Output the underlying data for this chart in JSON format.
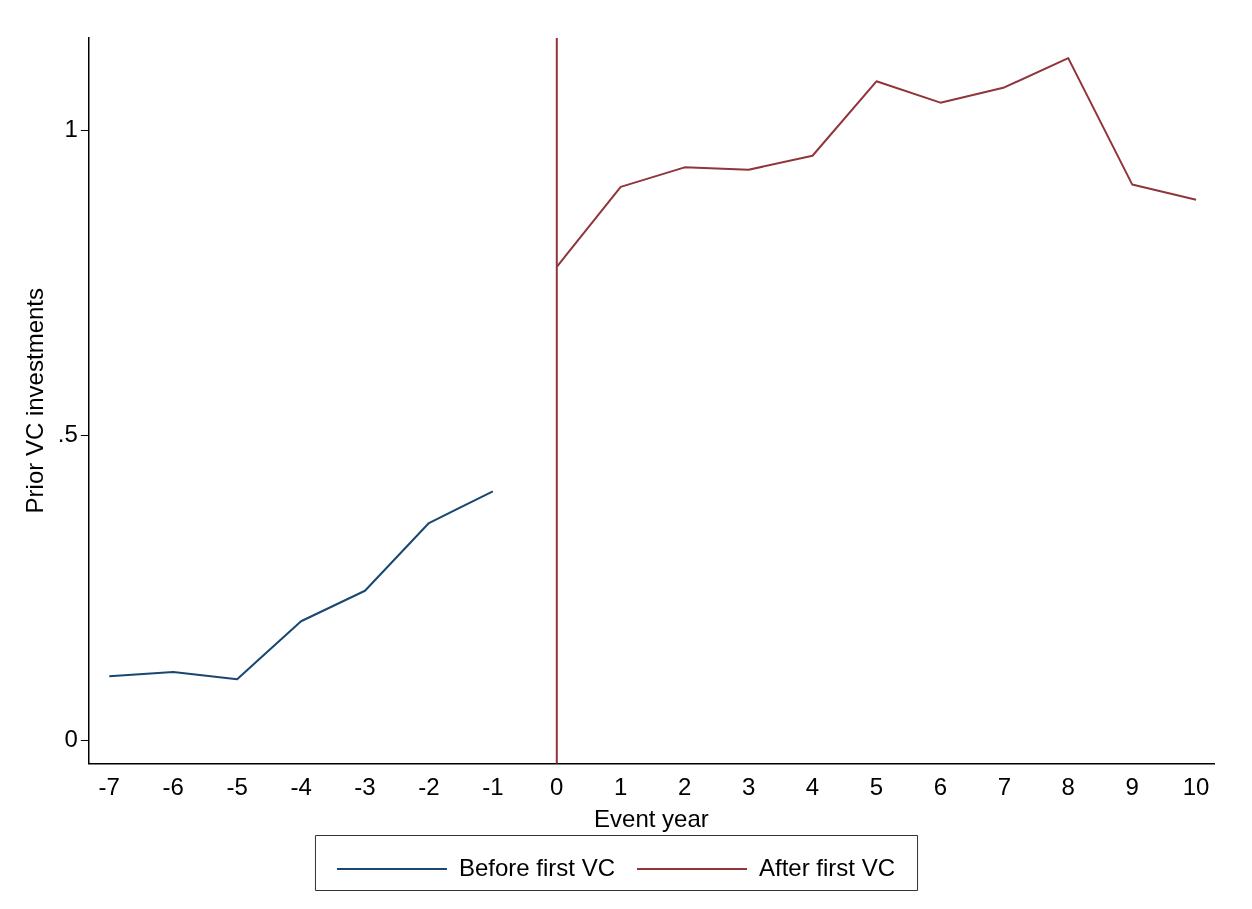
{
  "chart_data": {
    "type": "line",
    "xlabel": "Event year",
    "ylabel": "Prior VC investments",
    "series": [
      {
        "name": "Before first VC",
        "color": "#1a476f",
        "x": [
          -7,
          -6,
          -5,
          -4,
          -3,
          -2,
          -1
        ],
        "values": [
          0.106,
          0.113,
          0.101,
          0.196,
          0.246,
          0.357,
          0.409
        ]
      },
      {
        "name": "After first VC",
        "color": "#90353b",
        "x": [
          0,
          1,
          2,
          3,
          4,
          5,
          6,
          7,
          8,
          9,
          10
        ],
        "values": [
          0.777,
          0.908,
          0.94,
          0.936,
          0.959,
          1.081,
          1.046,
          1.071,
          1.119,
          0.912,
          0.887
        ]
      }
    ],
    "xlim": [
      -7.32,
      10.28
    ],
    "xticks": [
      -7,
      -6,
      -5,
      -4,
      -3,
      -2,
      -1,
      0,
      1,
      2,
      3,
      4,
      5,
      6,
      7,
      8,
      9,
      10
    ],
    "ylim": [
      -0.037,
      1.152
    ],
    "yticks": [
      0,
      {
        "value": 0.5,
        "label": ".5"
      },
      1
    ],
    "ref_lines": [
      {
        "axis": "x",
        "value": 0,
        "color": "#90353b"
      }
    ],
    "grid": false,
    "legend": "bottom",
    "marker": "none",
    "line_style": "solid"
  }
}
